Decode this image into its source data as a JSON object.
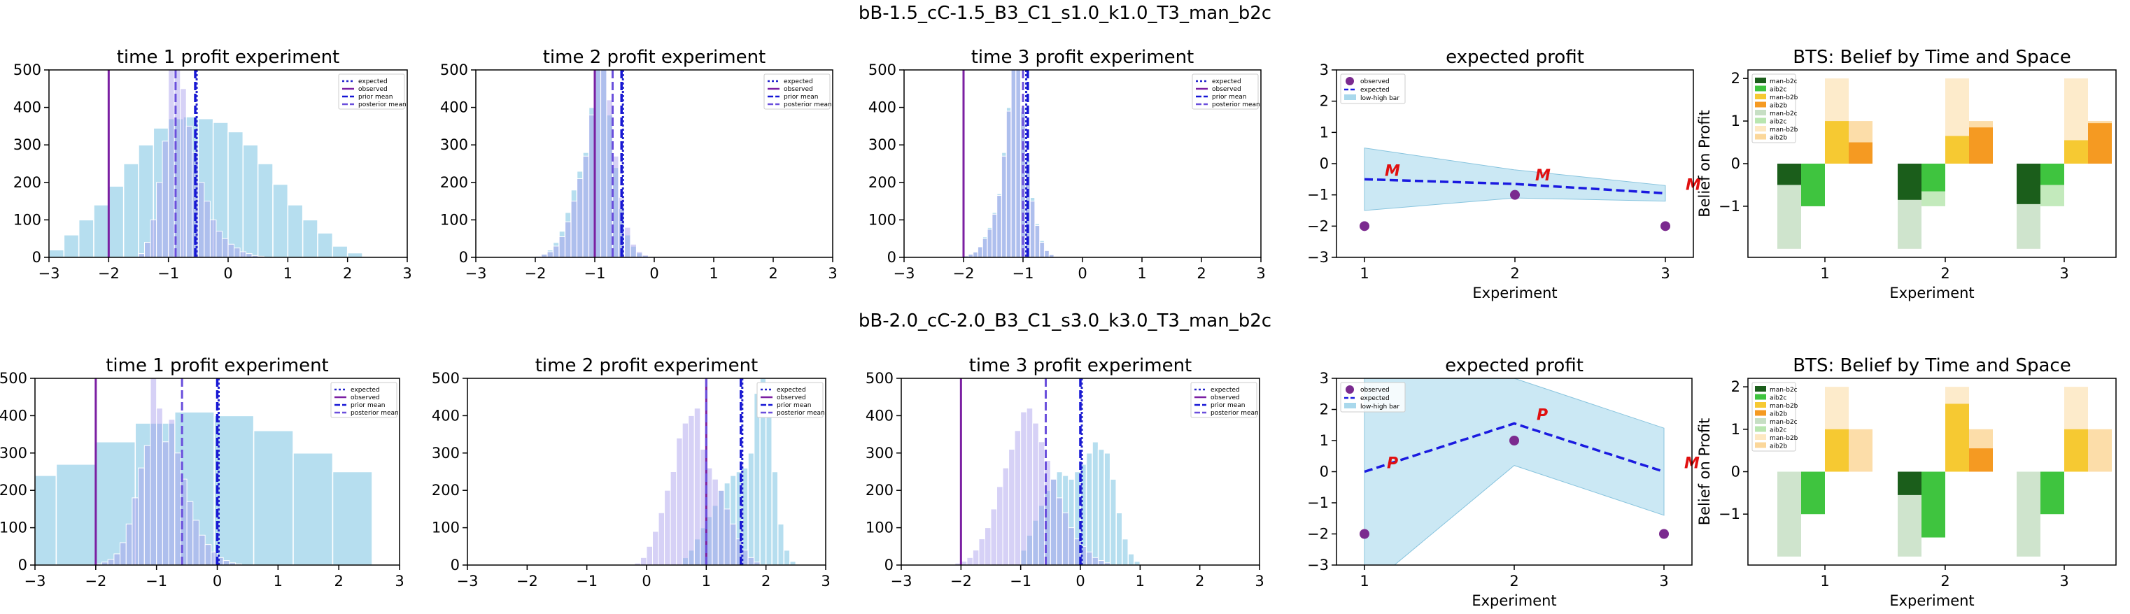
{
  "figure": {
    "rows": [
      {
        "suptitle": "bB-1.5_cC-1.5_B3_C1_s1.0_k1.0_T3_man_b2c",
        "hist_panels": [
          {
            "title": "time 1 profit experiment",
            "xlim": [
              -3,
              3
            ],
            "ylim": [
              0,
              500
            ],
            "xticks": [
              "−3",
              "−2",
              "−1",
              "0",
              "1",
              "2",
              "3"
            ],
            "yticks": [
              "0",
              "100",
              "200",
              "300",
              "400",
              "500"
            ],
            "prior": {
              "bin_width": 0.25,
              "counts": [
                20,
                60,
                100,
                140,
                190,
                250,
                300,
                345,
                370,
                375,
                370,
                360,
                335,
                300,
                250,
                195,
                140,
                100,
                65,
                30,
                12
              ]
            },
            "posterior": {
              "bin_width": 0.1,
              "start": -1.5,
              "counts": [
                10,
                40,
                100,
                200,
                310,
                510,
                510,
                450,
                350,
                280,
                200,
                150,
                100,
                70,
                50,
                35,
                25,
                15,
                10,
                5,
                3
              ]
            },
            "lines": {
              "expected": -0.55,
              "observed": -2.0,
              "prior_mean": -0.55,
              "posterior_mean": -0.88
            },
            "legend": [
              "expected",
              "observed",
              "prior mean",
              "posterior mean"
            ]
          },
          {
            "title": "time 2 profit experiment",
            "xlim": [
              -3,
              3
            ],
            "ylim": [
              0,
              500
            ],
            "xticks": [
              "−3",
              "−2",
              "−1",
              "0",
              "1",
              "2",
              "3"
            ],
            "yticks": [
              "0",
              "100",
              "200",
              "300",
              "400",
              "500"
            ],
            "prior": {
              "bin_width": 0.1,
              "start": -2.0,
              "counts": [
                5,
                10,
                20,
                40,
                70,
                120,
                180,
                230,
                280,
                400,
                500,
                510,
                380,
                240,
                130,
                60,
                30,
                12,
                5,
                2
              ]
            },
            "posterior": {
              "bin_width": 0.1,
              "start": -2.0,
              "counts": [
                3,
                8,
                15,
                30,
                55,
                95,
                150,
                210,
                270,
                380,
                510,
                510,
                420,
                270,
                160,
                80,
                35,
                15,
                6,
                2
              ]
            },
            "lines": {
              "expected": -0.55,
              "observed": -1.0,
              "prior_mean": -0.55,
              "posterior_mean": -0.7
            },
            "legend": [
              "expected",
              "observed",
              "prior mean",
              "posterior mean"
            ]
          },
          {
            "title": "time 3 profit experiment",
            "xlim": [
              -3,
              3
            ],
            "ylim": [
              0,
              500
            ],
            "xticks": [
              "−3",
              "−2",
              "−1",
              "0",
              "1",
              "2",
              "3"
            ],
            "yticks": [
              "0",
              "100",
              "200",
              "300",
              "400",
              "500"
            ],
            "prior": {
              "bin_width": 0.08,
              "start": -2.0,
              "counts": [
                5,
                10,
                15,
                30,
                55,
                80,
                120,
                170,
                280,
                400,
                510,
                510,
                400,
                260,
                160,
                90,
                45,
                20,
                8,
                3
              ]
            },
            "posterior": {
              "bin_width": 0.08,
              "start": -2.0,
              "counts": [
                4,
                8,
                14,
                28,
                50,
                75,
                115,
                165,
                270,
                390,
                510,
                510,
                390,
                250,
                150,
                85,
                40,
                18,
                7,
                2
              ]
            },
            "lines": {
              "expected": -0.97,
              "observed": -2.0,
              "prior_mean": -0.92,
              "posterior_mean": -1.0
            },
            "legend": [
              "expected",
              "observed",
              "prior mean",
              "posterior mean"
            ]
          }
        ],
        "expected_panel": {
          "title": "expected profit",
          "xlabel": "Experiment",
          "xticks": [
            "1",
            "2",
            "3"
          ],
          "yticks": [
            "−3",
            "−2",
            "−1",
            "0",
            "1",
            "2",
            "3"
          ],
          "ylim": [
            -3,
            3
          ],
          "expected": [
            -0.5,
            -0.65,
            -0.95
          ],
          "observed": [
            -2,
            -1,
            -2
          ],
          "band_low": [
            -1.5,
            -1.1,
            -1.2
          ],
          "band_high": [
            0.5,
            -0.2,
            -0.7
          ],
          "markers": [
            "M",
            "M",
            "M"
          ],
          "legend": [
            "observed",
            "expected",
            "low-high bar"
          ]
        },
        "bts_panel": {
          "title": "BTS: Belief by Time and Space",
          "xlabel": "Experiment",
          "ylabel": "Belief on Profit",
          "xticks": [
            "1",
            "2",
            "3"
          ],
          "yticks": [
            "−1",
            "0",
            "1",
            "2"
          ],
          "ylim": [
            -2.2,
            2.2
          ],
          "legend": [
            "man-b2c",
            "aib2c",
            "man-b2b",
            "aib2b",
            "man-b2c",
            "aib2c",
            "man-b2b",
            "aib2b"
          ],
          "groups": [
            {
              "man_b2c": -2.0,
              "aib2c": -1.0,
              "man_b2b": 2.0,
              "aib2b": 1.0,
              "man_b2c_now": -0.5,
              "aib2c_now": -1.0,
              "man_b2b_now": 1.0,
              "aib2b_now": 0.5
            },
            {
              "man_b2c": -2.0,
              "aib2c": -1.0,
              "man_b2b": 2.0,
              "aib2b": 1.0,
              "man_b2c_now": -0.85,
              "aib2c_now": -0.65,
              "man_b2b_now": 0.65,
              "aib2b_now": 0.85
            },
            {
              "man_b2c": -2.0,
              "aib2c": -1.0,
              "man_b2b": 2.0,
              "aib2b": 1.0,
              "man_b2c_now": -0.95,
              "aib2c_now": -0.5,
              "man_b2b_now": 0.55,
              "aib2b_now": 0.95
            }
          ]
        }
      },
      {
        "suptitle": "bB-2.0_cC-2.0_B3_C1_s3.0_k3.0_T3_man_b2c",
        "hist_panels": [
          {
            "title": "time 1 profit experiment",
            "xlim": [
              -3,
              3
            ],
            "ylim": [
              0,
              500
            ],
            "xticks": [
              "−3",
              "−2",
              "−1",
              "0",
              "1",
              "2",
              "3"
            ],
            "yticks": [
              "0",
              "100",
              "200",
              "300",
              "400",
              "500"
            ],
            "prior": {
              "bin_width": 0.65,
              "start": -3.3,
              "counts": [
                240,
                270,
                330,
                380,
                410,
                400,
                360,
                300,
                250
              ]
            },
            "posterior": {
              "bin_width": 0.1,
              "start": -2.0,
              "counts": [
                3,
                8,
                15,
                30,
                60,
                110,
                180,
                260,
                320,
                500,
                420,
                330,
                390,
                300,
                230,
                170,
                120,
                80,
                55,
                35,
                20,
                12,
                6,
                3
              ]
            },
            "lines": {
              "expected": 0.0,
              "observed": -2.0,
              "prior_mean": 0.0,
              "posterior_mean": -0.58
            },
            "legend": [
              "expected",
              "observed",
              "prior mean",
              "posterior mean"
            ]
          },
          {
            "title": "time 2 profit experiment",
            "xlim": [
              -3,
              3
            ],
            "ylim": [
              0,
              500
            ],
            "xticks": [
              "−3",
              "−2",
              "−1",
              "0",
              "1",
              "2",
              "3"
            ],
            "yticks": [
              "0",
              "100",
              "200",
              "300",
              "400",
              "500"
            ],
            "prior": {
              "bin_width": 0.1,
              "start": 0.6,
              "counts": [
                20,
                40,
                70,
                100,
                130,
                160,
                200,
                220,
                240,
                250,
                260,
                300,
                460,
                510,
                420,
                250,
                110,
                40,
                10
              ]
            },
            "posterior": {
              "bin_width": 0.1,
              "start": -0.2,
              "counts": [
                5,
                20,
                50,
                90,
                140,
                200,
                250,
                340,
                380,
                400,
                420,
                310,
                260,
                230,
                200,
                150,
                110,
                70,
                40,
                20,
                8
              ]
            },
            "lines": {
              "expected": 1.58,
              "observed": 1.0,
              "prior_mean": 1.58,
              "posterior_mean": 1.0
            },
            "legend": [
              "expected",
              "observed",
              "prior mean",
              "posterior mean"
            ]
          },
          {
            "title": "time 3 profit experiment",
            "xlim": [
              -3,
              3
            ],
            "ylim": [
              0,
              500
            ],
            "xticks": [
              "−3",
              "−2",
              "−1",
              "0",
              "1",
              "2",
              "3"
            ],
            "yticks": [
              "0",
              "100",
              "200",
              "300",
              "400",
              "500"
            ],
            "prior": {
              "bin_width": 0.1,
              "start": -1.0,
              "counts": [
                40,
                80,
                120,
                160,
                200,
                230,
                250,
                240,
                230,
                250,
                270,
                300,
                330,
                310,
                300,
                230,
                140,
                70,
                30,
                10
              ]
            },
            "posterior": {
              "bin_width": 0.1,
              "start": -2.1,
              "counts": [
                5,
                10,
                20,
                40,
                70,
                100,
                150,
                210,
                260,
                310,
                360,
                410,
                420,
                380,
                330,
                280,
                230,
                180,
                140,
                100,
                70,
                50,
                35,
                20,
                12,
                6
              ]
            },
            "lines": {
              "expected": 0.0,
              "observed": -2.0,
              "prior_mean": 0.0,
              "posterior_mean": -0.58
            },
            "legend": [
              "expected",
              "observed",
              "prior mean",
              "posterior mean"
            ]
          }
        ],
        "expected_panel": {
          "title": "expected profit",
          "xlabel": "Experiment",
          "xticks": [
            "1",
            "2",
            "3"
          ],
          "yticks": [
            "−3",
            "−2",
            "−1",
            "0",
            "1",
            "2",
            "3"
          ],
          "ylim": [
            -3,
            3
          ],
          "expected": [
            0,
            1.55,
            0
          ],
          "observed": [
            -2,
            1,
            -2
          ],
          "band_low": [
            -3.8,
            0.2,
            -1.4
          ],
          "band_high": [
            4.5,
            3.0,
            1.4
          ],
          "markers": [
            "P",
            "P",
            "M"
          ],
          "legend": [
            "observed",
            "expected",
            "low-high bar"
          ]
        },
        "bts_panel": {
          "title": "BTS: Belief by Time and Space",
          "xlabel": "Experiment",
          "ylabel": "Belief on Profit",
          "xticks": [
            "1",
            "2",
            "3"
          ],
          "yticks": [
            "−1",
            "0",
            "1",
            "2"
          ],
          "ylim": [
            -2.2,
            2.2
          ],
          "legend": [
            "man-b2c",
            "aib2c",
            "man-b2b",
            "aib2b",
            "man-b2c",
            "aib2c",
            "man-b2b",
            "aib2b"
          ],
          "groups": [
            {
              "man_b2c": -2.0,
              "aib2c": -1.0,
              "man_b2b": 2.0,
              "aib2b": 1.0,
              "man_b2c_now": 0.0,
              "aib2c_now": -1.0,
              "man_b2b_now": 1.0,
              "aib2b_now": 0.0
            },
            {
              "man_b2c": -2.0,
              "aib2c": -1.0,
              "man_b2b": 2.0,
              "aib2b": 1.0,
              "man_b2c_now": -0.55,
              "aib2c_now": -1.55,
              "man_b2b_now": 1.6,
              "aib2b_now": 0.55
            },
            {
              "man_b2c": -2.0,
              "aib2c": -1.0,
              "man_b2b": 2.0,
              "aib2b": 1.0,
              "man_b2c_now": 0.0,
              "aib2c_now": -1.0,
              "man_b2b_now": 1.0,
              "aib2b_now": 0.0
            }
          ]
        }
      }
    ]
  },
  "chart_data": [
    {
      "type": "bar",
      "title": "time 1 profit experiment",
      "series": [
        {
          "name": "expected"
        },
        {
          "name": "observed"
        },
        {
          "name": "prior mean"
        },
        {
          "name": "posterior mean"
        }
      ],
      "xlim": [
        -3,
        3
      ],
      "ylim": [
        0,
        500
      ]
    },
    {
      "type": "bar",
      "title": "time 2 profit experiment",
      "xlim": [
        -3,
        3
      ],
      "ylim": [
        0,
        500
      ]
    },
    {
      "type": "bar",
      "title": "time 3 profit experiment",
      "xlim": [
        -3,
        3
      ],
      "ylim": [
        0,
        500
      ]
    },
    {
      "type": "line",
      "title": "expected profit",
      "x": [
        1,
        2,
        3
      ],
      "series": [
        {
          "name": "expected",
          "values": [
            -0.5,
            -0.65,
            -0.95
          ]
        },
        {
          "name": "observed",
          "values": [
            -2,
            -1,
            -2
          ]
        }
      ],
      "xlabel": "Experiment",
      "ylim": [
        -3,
        3
      ]
    },
    {
      "type": "bar",
      "title": "BTS: Belief by Time and Space",
      "categories": [
        "1",
        "2",
        "3"
      ],
      "xlabel": "Experiment",
      "ylabel": "Belief on Profit"
    },
    {
      "type": "bar",
      "title": "time 1 profit experiment",
      "xlim": [
        -3,
        3
      ],
      "ylim": [
        0,
        500
      ]
    },
    {
      "type": "bar",
      "title": "time 2 profit experiment",
      "xlim": [
        -3,
        3
      ],
      "ylim": [
        0,
        500
      ]
    },
    {
      "type": "bar",
      "title": "time 3 profit experiment",
      "xlim": [
        -3,
        3
      ],
      "ylim": [
        0,
        500
      ]
    },
    {
      "type": "line",
      "title": "expected profit",
      "x": [
        1,
        2,
        3
      ],
      "series": [
        {
          "name": "expected",
          "values": [
            0,
            1.55,
            0
          ]
        },
        {
          "name": "observed",
          "values": [
            -2,
            1,
            -2
          ]
        }
      ],
      "xlabel": "Experiment",
      "ylim": [
        -3,
        3
      ]
    },
    {
      "type": "bar",
      "title": "BTS: Belief by Time and Space",
      "categories": [
        "1",
        "2",
        "3"
      ],
      "xlabel": "Experiment",
      "ylabel": "Belief on Profit"
    }
  ]
}
